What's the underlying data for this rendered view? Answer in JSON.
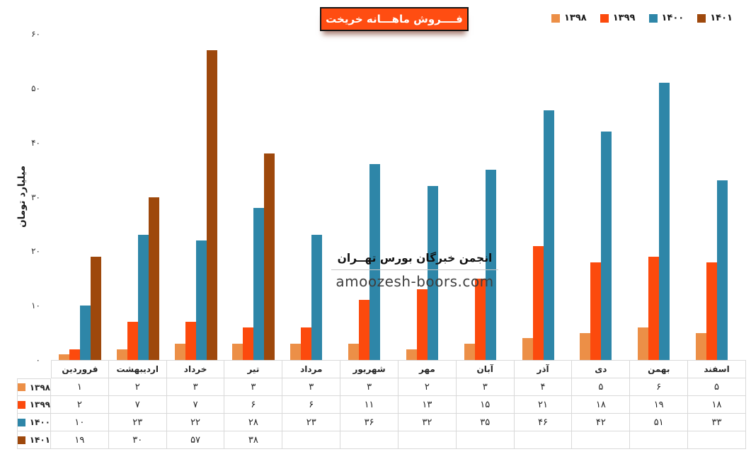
{
  "title": "فــــروش ماهـــانه خریخت",
  "legend": {
    "items": [
      {
        "label": "۱۳۹۸",
        "color": "#EC8F47"
      },
      {
        "label": "۱۳۹۹",
        "color": "#FC4A0D"
      },
      {
        "label": "۱۴۰۰",
        "color": "#2E86A8"
      },
      {
        "label": "۱۴۰۱",
        "color": "#9E480C"
      }
    ]
  },
  "y_axis": {
    "label": "میلیارد تومان",
    "ticks": [
      {
        "value": 0,
        "label": "۰"
      },
      {
        "value": 10,
        "label": "۱۰"
      },
      {
        "value": 20,
        "label": "۲۰"
      },
      {
        "value": 30,
        "label": "۳۰"
      },
      {
        "value": 40,
        "label": "۴۰"
      },
      {
        "value": 50,
        "label": "۵۰"
      },
      {
        "value": 60,
        "label": "۶۰"
      }
    ]
  },
  "watermark": {
    "line1": "انجمن خبرگان بورس تهــران",
    "line2": "amoozesh-boors.com"
  },
  "colors": {
    "series_1398": "#EC8F47",
    "series_1399": "#FC4A0D",
    "series_1400": "#2E86A8",
    "series_1401": "#9E480C",
    "title_background": "#FF4D12",
    "table_border": "#D9D9D9"
  },
  "chart_data": {
    "type": "bar",
    "title": "فــــروش ماهـــانه خریخت",
    "xlabel": "",
    "ylabel": "میلیارد تومان",
    "ylim": [
      0,
      60
    ],
    "grid": false,
    "legend_position": "top-right",
    "categories": [
      "فروردین",
      "اردیبهشت",
      "خرداد",
      "تیر",
      "مرداد",
      "شهریور",
      "مهر",
      "آبان",
      "آذر",
      "دی",
      "بهمن",
      "اسفند"
    ],
    "series": [
      {
        "name": "۱۳۹۸",
        "color": "#EC8F47",
        "values": [
          1,
          2,
          3,
          3,
          3,
          3,
          2,
          3,
          4,
          5,
          6,
          5
        ],
        "labels": [
          "۱",
          "۲",
          "۳",
          "۳",
          "۳",
          "۳",
          "۲",
          "۳",
          "۴",
          "۵",
          "۶",
          "۵"
        ]
      },
      {
        "name": "۱۳۹۹",
        "color": "#FC4A0D",
        "values": [
          2,
          7,
          7,
          6,
          6,
          11,
          13,
          15,
          21,
          18,
          19,
          18
        ],
        "labels": [
          "۲",
          "۷",
          "۷",
          "۶",
          "۶",
          "۱۱",
          "۱۳",
          "۱۵",
          "۲۱",
          "۱۸",
          "۱۹",
          "۱۸"
        ]
      },
      {
        "name": "۱۴۰۰",
        "color": "#2E86A8",
        "values": [
          10,
          23,
          22,
          28,
          23,
          36,
          32,
          35,
          46,
          42,
          51,
          33
        ],
        "labels": [
          "۱۰",
          "۲۳",
          "۲۲",
          "۲۸",
          "۲۳",
          "۳۶",
          "۳۲",
          "۳۵",
          "۴۶",
          "۴۲",
          "۵۱",
          "۳۳"
        ]
      },
      {
        "name": "۱۴۰۱",
        "color": "#9E480C",
        "values": [
          19,
          30,
          57,
          38,
          null,
          null,
          null,
          null,
          null,
          null,
          null,
          null
        ],
        "labels": [
          "۱۹",
          "۳۰",
          "۵۷",
          "۳۸",
          "",
          "",
          "",
          "",
          "",
          "",
          "",
          ""
        ]
      }
    ]
  }
}
